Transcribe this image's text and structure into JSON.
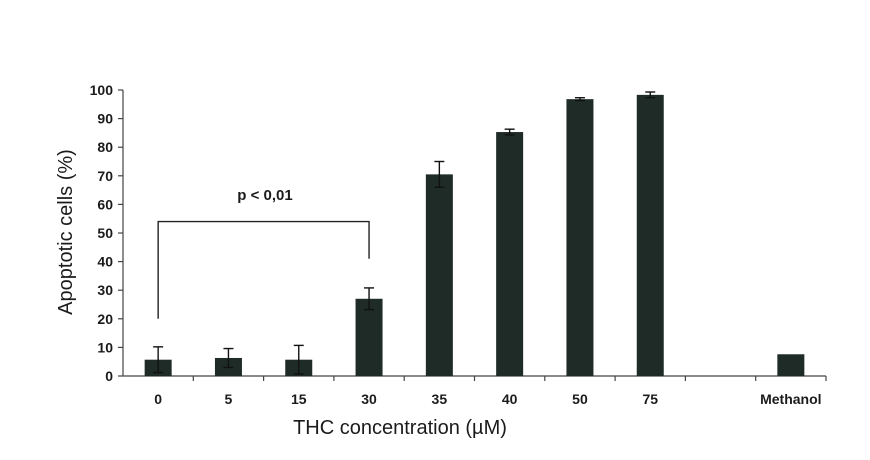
{
  "chart_data": {
    "type": "bar",
    "ylabel": "Apoptotic cells (%)",
    "xlabel": "THC concentration (µM)",
    "ylim": [
      0,
      100
    ],
    "yticks": [
      0,
      10,
      20,
      30,
      40,
      50,
      60,
      70,
      80,
      90,
      100
    ],
    "grid": false,
    "categories": [
      "0",
      "5",
      "15",
      "30",
      "35",
      "40",
      "50",
      "75",
      "",
      "Methanol"
    ],
    "values": [
      5.7,
      6.3,
      5.7,
      27,
      70.5,
      85.3,
      96.8,
      98.3,
      null,
      7.6
    ],
    "errors": [
      4.5,
      3.3,
      5.0,
      3.8,
      4.5,
      1.0,
      0.5,
      1.0,
      null,
      null
    ],
    "bar_color": "#1e2b27",
    "annotation": {
      "text": "p < 0,01",
      "from_category": "0",
      "to_category": "30"
    }
  }
}
